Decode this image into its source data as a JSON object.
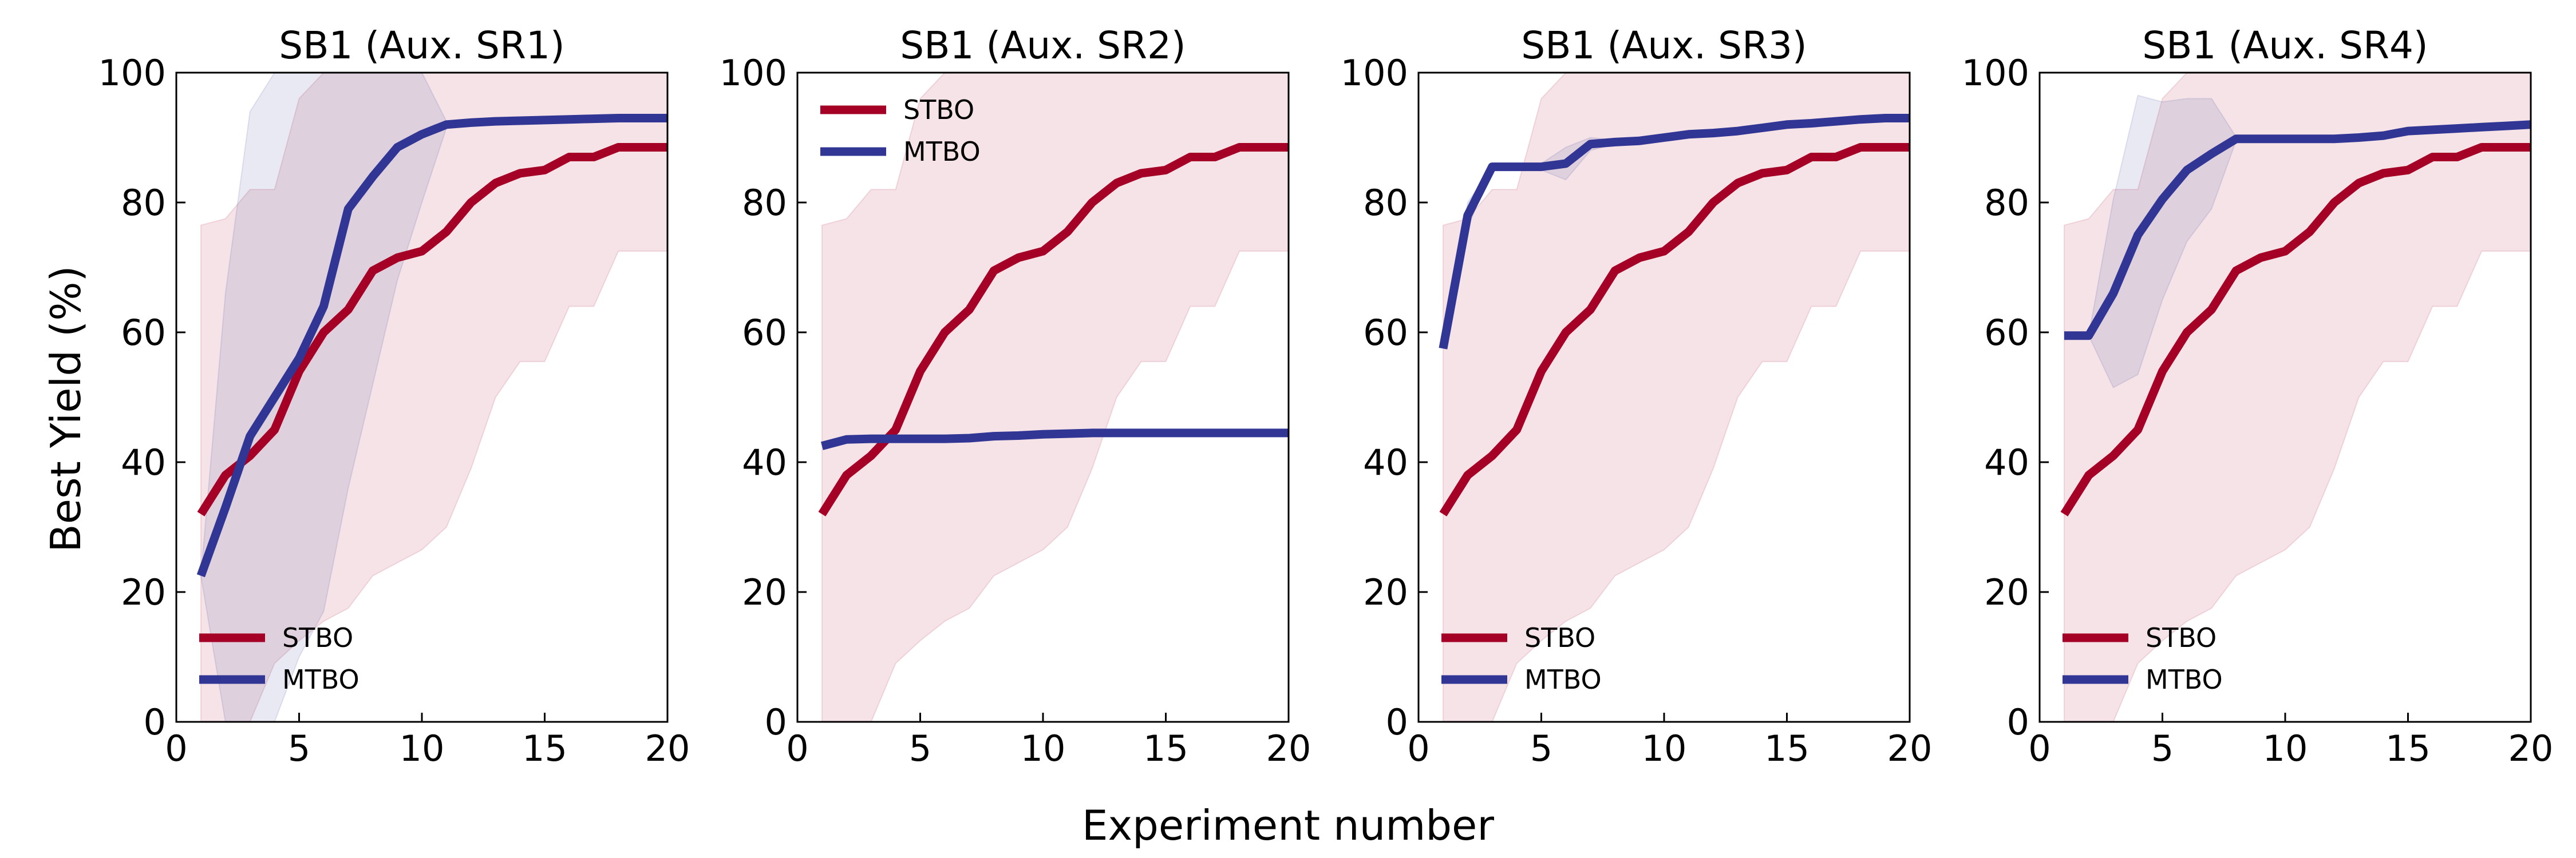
{
  "figure": {
    "xlabel": "Experiment number",
    "ylabel": "Best Yield (%)"
  },
  "chart_data": [
    {
      "type": "line",
      "title": "SB1 (Aux. SR1)",
      "xlabel": "Experiment number",
      "ylabel": "Best Yield (%)",
      "xlim": [
        0,
        20
      ],
      "ylim": [
        0,
        100
      ],
      "xticks": [
        0,
        5,
        10,
        15,
        20
      ],
      "yticks": [
        0,
        20,
        40,
        60,
        80,
        100
      ],
      "grid": false,
      "legend": "bottom-left",
      "x": [
        1,
        2,
        3,
        4,
        5,
        6,
        7,
        8,
        9,
        10,
        11,
        12,
        13,
        14,
        15,
        16,
        17,
        18,
        19,
        20
      ],
      "series": [
        {
          "name": "STBO",
          "color": "#a50026",
          "values": [
            32,
            38,
            41,
            45,
            54,
            60,
            63.5,
            69.5,
            71.5,
            72.5,
            75.5,
            80,
            83,
            84.5,
            85,
            87,
            87,
            88.5,
            88.5,
            88.5
          ],
          "band_low": [
            0,
            0,
            0,
            9,
            12.5,
            15.5,
            17.5,
            22.5,
            24.5,
            26.5,
            30,
            39,
            50,
            55.5,
            55.5,
            64,
            64,
            72.5,
            72.5,
            72.5
          ],
          "band_high": [
            76.5,
            77.5,
            82,
            82,
            96,
            100,
            100,
            100,
            100,
            100,
            100,
            100,
            100,
            100,
            100,
            100,
            100,
            100,
            100,
            100
          ]
        },
        {
          "name": "MTBO",
          "color": "#313695",
          "values": [
            22.5,
            33,
            44,
            50,
            56,
            64,
            79,
            84,
            88.5,
            90.5,
            92,
            92.3,
            92.5,
            92.6,
            92.7,
            92.8,
            92.9,
            93,
            93,
            93
          ],
          "band_low": [
            22.5,
            0,
            0,
            0,
            10,
            17,
            36,
            52,
            68,
            80,
            91.5,
            92,
            92.3,
            92.5,
            92.6,
            92.7,
            92.8,
            92.9,
            93,
            93
          ],
          "band_high": [
            22.5,
            66,
            94,
            100,
            100,
            100,
            100,
            100,
            100,
            100,
            92.5,
            92.7,
            92.8,
            92.9,
            93,
            93,
            93,
            93,
            93,
            93
          ]
        }
      ]
    },
    {
      "type": "line",
      "title": "SB1 (Aux. SR2)",
      "xlabel": "Experiment number",
      "ylabel": "Best Yield (%)",
      "xlim": [
        0,
        20
      ],
      "ylim": [
        0,
        100
      ],
      "xticks": [
        0,
        5,
        10,
        15,
        20
      ],
      "yticks": [
        0,
        20,
        40,
        60,
        80,
        100
      ],
      "grid": false,
      "legend": "top-left",
      "x": [
        1,
        2,
        3,
        4,
        5,
        6,
        7,
        8,
        9,
        10,
        11,
        12,
        13,
        14,
        15,
        16,
        17,
        18,
        19,
        20
      ],
      "series": [
        {
          "name": "STBO",
          "color": "#a50026",
          "values": [
            32,
            38,
            41,
            45,
            54,
            60,
            63.5,
            69.5,
            71.5,
            72.5,
            75.5,
            80,
            83,
            84.5,
            85,
            87,
            87,
            88.5,
            88.5,
            88.5
          ],
          "band_low": [
            0,
            0,
            0,
            9,
            12.5,
            15.5,
            17.5,
            22.5,
            24.5,
            26.5,
            30,
            39,
            50,
            55.5,
            55.5,
            64,
            64,
            72.5,
            72.5,
            72.5
          ],
          "band_high": [
            76.5,
            77.5,
            82,
            82,
            96,
            100,
            100,
            100,
            100,
            100,
            100,
            100,
            100,
            100,
            100,
            100,
            100,
            100,
            100,
            100
          ]
        },
        {
          "name": "MTBO",
          "color": "#313695",
          "values": [
            42.5,
            43.5,
            43.6,
            43.6,
            43.6,
            43.6,
            43.7,
            44,
            44.1,
            44.3,
            44.4,
            44.5,
            44.5,
            44.5,
            44.5,
            44.5,
            44.5,
            44.5,
            44.5,
            44.5
          ]
        }
      ]
    },
    {
      "type": "line",
      "title": "SB1 (Aux. SR3)",
      "xlabel": "Experiment number",
      "ylabel": "Best Yield (%)",
      "xlim": [
        0,
        20
      ],
      "ylim": [
        0,
        100
      ],
      "xticks": [
        0,
        5,
        10,
        15,
        20
      ],
      "yticks": [
        0,
        20,
        40,
        60,
        80,
        100
      ],
      "grid": false,
      "legend": "bottom-left",
      "x": [
        1,
        2,
        3,
        4,
        5,
        6,
        7,
        8,
        9,
        10,
        11,
        12,
        13,
        14,
        15,
        16,
        17,
        18,
        19,
        20
      ],
      "series": [
        {
          "name": "STBO",
          "color": "#a50026",
          "values": [
            32,
            38,
            41,
            45,
            54,
            60,
            63.5,
            69.5,
            71.5,
            72.5,
            75.5,
            80,
            83,
            84.5,
            85,
            87,
            87,
            88.5,
            88.5,
            88.5
          ],
          "band_low": [
            0,
            0,
            0,
            9,
            12.5,
            15.5,
            17.5,
            22.5,
            24.5,
            26.5,
            30,
            39,
            50,
            55.5,
            55.5,
            64,
            64,
            72.5,
            72.5,
            72.5
          ],
          "band_high": [
            76.5,
            77.5,
            82,
            82,
            96,
            100,
            100,
            100,
            100,
            100,
            100,
            100,
            100,
            100,
            100,
            100,
            100,
            100,
            100,
            100
          ]
        },
        {
          "name": "MTBO",
          "color": "#313695",
          "values": [
            57.5,
            78,
            85.5,
            85.5,
            85.5,
            86,
            89,
            89.3,
            89.5,
            90,
            90.5,
            90.7,
            91,
            91.5,
            92,
            92.2,
            92.5,
            92.8,
            93,
            93
          ],
          "band_low": [
            57.5,
            76,
            85.5,
            85.5,
            85,
            83.5,
            88,
            89,
            89.3,
            89.8,
            90.3,
            90.5,
            90.8,
            91.3,
            91.8,
            92,
            92.3,
            92.6,
            92.8,
            93
          ],
          "band_high": [
            57.5,
            80,
            85.5,
            85.5,
            86,
            88.5,
            90,
            89.6,
            89.7,
            90.2,
            90.7,
            90.9,
            91.2,
            91.7,
            92.2,
            92.4,
            92.7,
            93,
            93,
            93
          ]
        }
      ]
    },
    {
      "type": "line",
      "title": "SB1 (Aux. SR4)",
      "xlabel": "Experiment number",
      "ylabel": "Best Yield (%)",
      "xlim": [
        0,
        20
      ],
      "ylim": [
        0,
        100
      ],
      "xticks": [
        0,
        5,
        10,
        15,
        20
      ],
      "yticks": [
        0,
        20,
        40,
        60,
        80,
        100
      ],
      "grid": false,
      "legend": "bottom-left",
      "x": [
        1,
        2,
        3,
        4,
        5,
        6,
        7,
        8,
        9,
        10,
        11,
        12,
        13,
        14,
        15,
        16,
        17,
        18,
        19,
        20
      ],
      "series": [
        {
          "name": "STBO",
          "color": "#a50026",
          "values": [
            32,
            38,
            41,
            45,
            54,
            60,
            63.5,
            69.5,
            71.5,
            72.5,
            75.5,
            80,
            83,
            84.5,
            85,
            87,
            87,
            88.5,
            88.5,
            88.5
          ],
          "band_low": [
            0,
            0,
            0,
            9,
            12.5,
            15.5,
            17.5,
            22.5,
            24.5,
            26.5,
            30,
            39,
            50,
            55.5,
            55.5,
            64,
            64,
            72.5,
            72.5,
            72.5
          ],
          "band_high": [
            76.5,
            77.5,
            82,
            82,
            96,
            100,
            100,
            100,
            100,
            100,
            100,
            100,
            100,
            100,
            100,
            100,
            100,
            100,
            100,
            100
          ]
        },
        {
          "name": "MTBO",
          "color": "#313695",
          "values": [
            59.5,
            59.5,
            66,
            75,
            80.5,
            85,
            87.5,
            89.8,
            89.8,
            89.8,
            89.8,
            89.8,
            90,
            90.3,
            91,
            91.2,
            91.4,
            91.6,
            91.8,
            92
          ],
          "band_low": [
            59.5,
            59.5,
            51.5,
            53.5,
            65,
            74,
            79,
            89.5,
            89.5,
            89.5,
            89.5,
            89.5,
            89.7,
            90,
            90.7,
            91,
            91.2,
            91.4,
            91.6,
            91.8
          ],
          "band_high": [
            59.5,
            59.5,
            80.5,
            96.5,
            95.5,
            96,
            96,
            90.1,
            90.1,
            90.1,
            90.1,
            90.1,
            90.3,
            90.6,
            91.3,
            91.4,
            91.6,
            91.8,
            92,
            92.2
          ]
        }
      ]
    }
  ]
}
